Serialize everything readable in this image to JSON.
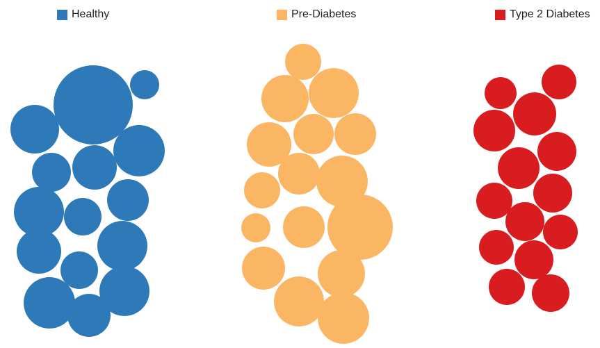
{
  "chart_data": {
    "type": "packed-bubble",
    "legend_position": "top",
    "series": [
      {
        "name": "Healthy",
        "color": "#2e7ab8",
        "values": [
          57,
          21,
          35,
          37,
          28,
          32,
          30,
          36,
          27,
          36,
          32,
          27,
          36,
          37,
          31,
          27,
          29
        ]
      },
      {
        "name": "Pre-Diabetes",
        "color": "#fbb664",
        "values": [
          26,
          34,
          36,
          32,
          29,
          30,
          30,
          26,
          37,
          30,
          21,
          47,
          31,
          34,
          36,
          37,
          29
        ]
      },
      {
        "name": "Type 2 Diabetes",
        "color": "#d81c1f",
        "values": [
          23,
          25,
          31,
          30,
          28,
          30,
          28,
          26,
          28,
          25,
          25,
          28,
          26,
          27,
          26,
          25
        ]
      }
    ]
  }
}
